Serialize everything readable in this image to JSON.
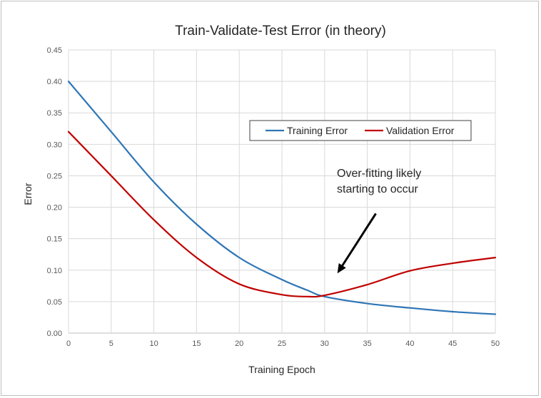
{
  "chart_data": {
    "type": "line",
    "title": "Train-Validate-Test  Error  (in theory)",
    "xlabel": "Training Epoch",
    "ylabel": "Error",
    "xlim": [
      0,
      50
    ],
    "ylim": [
      0,
      0.45
    ],
    "x_ticks": [
      "0",
      "5",
      "10",
      "15",
      "20",
      "25",
      "30",
      "35",
      "40",
      "45",
      "50"
    ],
    "y_ticks": [
      "0.00",
      "0.05",
      "0.10",
      "0.15",
      "0.20",
      "0.25",
      "0.30",
      "0.35",
      "0.40",
      "0.45"
    ],
    "grid": true,
    "legend_position": "upper-right",
    "x": [
      0,
      5,
      10,
      15,
      20,
      25,
      28,
      30,
      35,
      40,
      45,
      50
    ],
    "series": [
      {
        "name": "Training Error",
        "color": "#2e75b6",
        "values": [
          0.4,
          0.32,
          0.24,
          0.173,
          0.12,
          0.085,
          0.068,
          0.058,
          0.047,
          0.04,
          0.034,
          0.03
        ]
      },
      {
        "name": "Validation Error",
        "color": "#c00000",
        "values": [
          0.32,
          0.25,
          0.18,
          0.12,
          0.078,
          0.061,
          0.058,
          0.06,
          0.077,
          0.099,
          0.111,
          0.12
        ]
      }
    ],
    "annotation": {
      "lines": [
        "Over-fitting likely",
        "starting to occur"
      ],
      "arrow_from": [
        36,
        0.19
      ],
      "arrow_to": [
        31.5,
        0.095
      ]
    }
  }
}
